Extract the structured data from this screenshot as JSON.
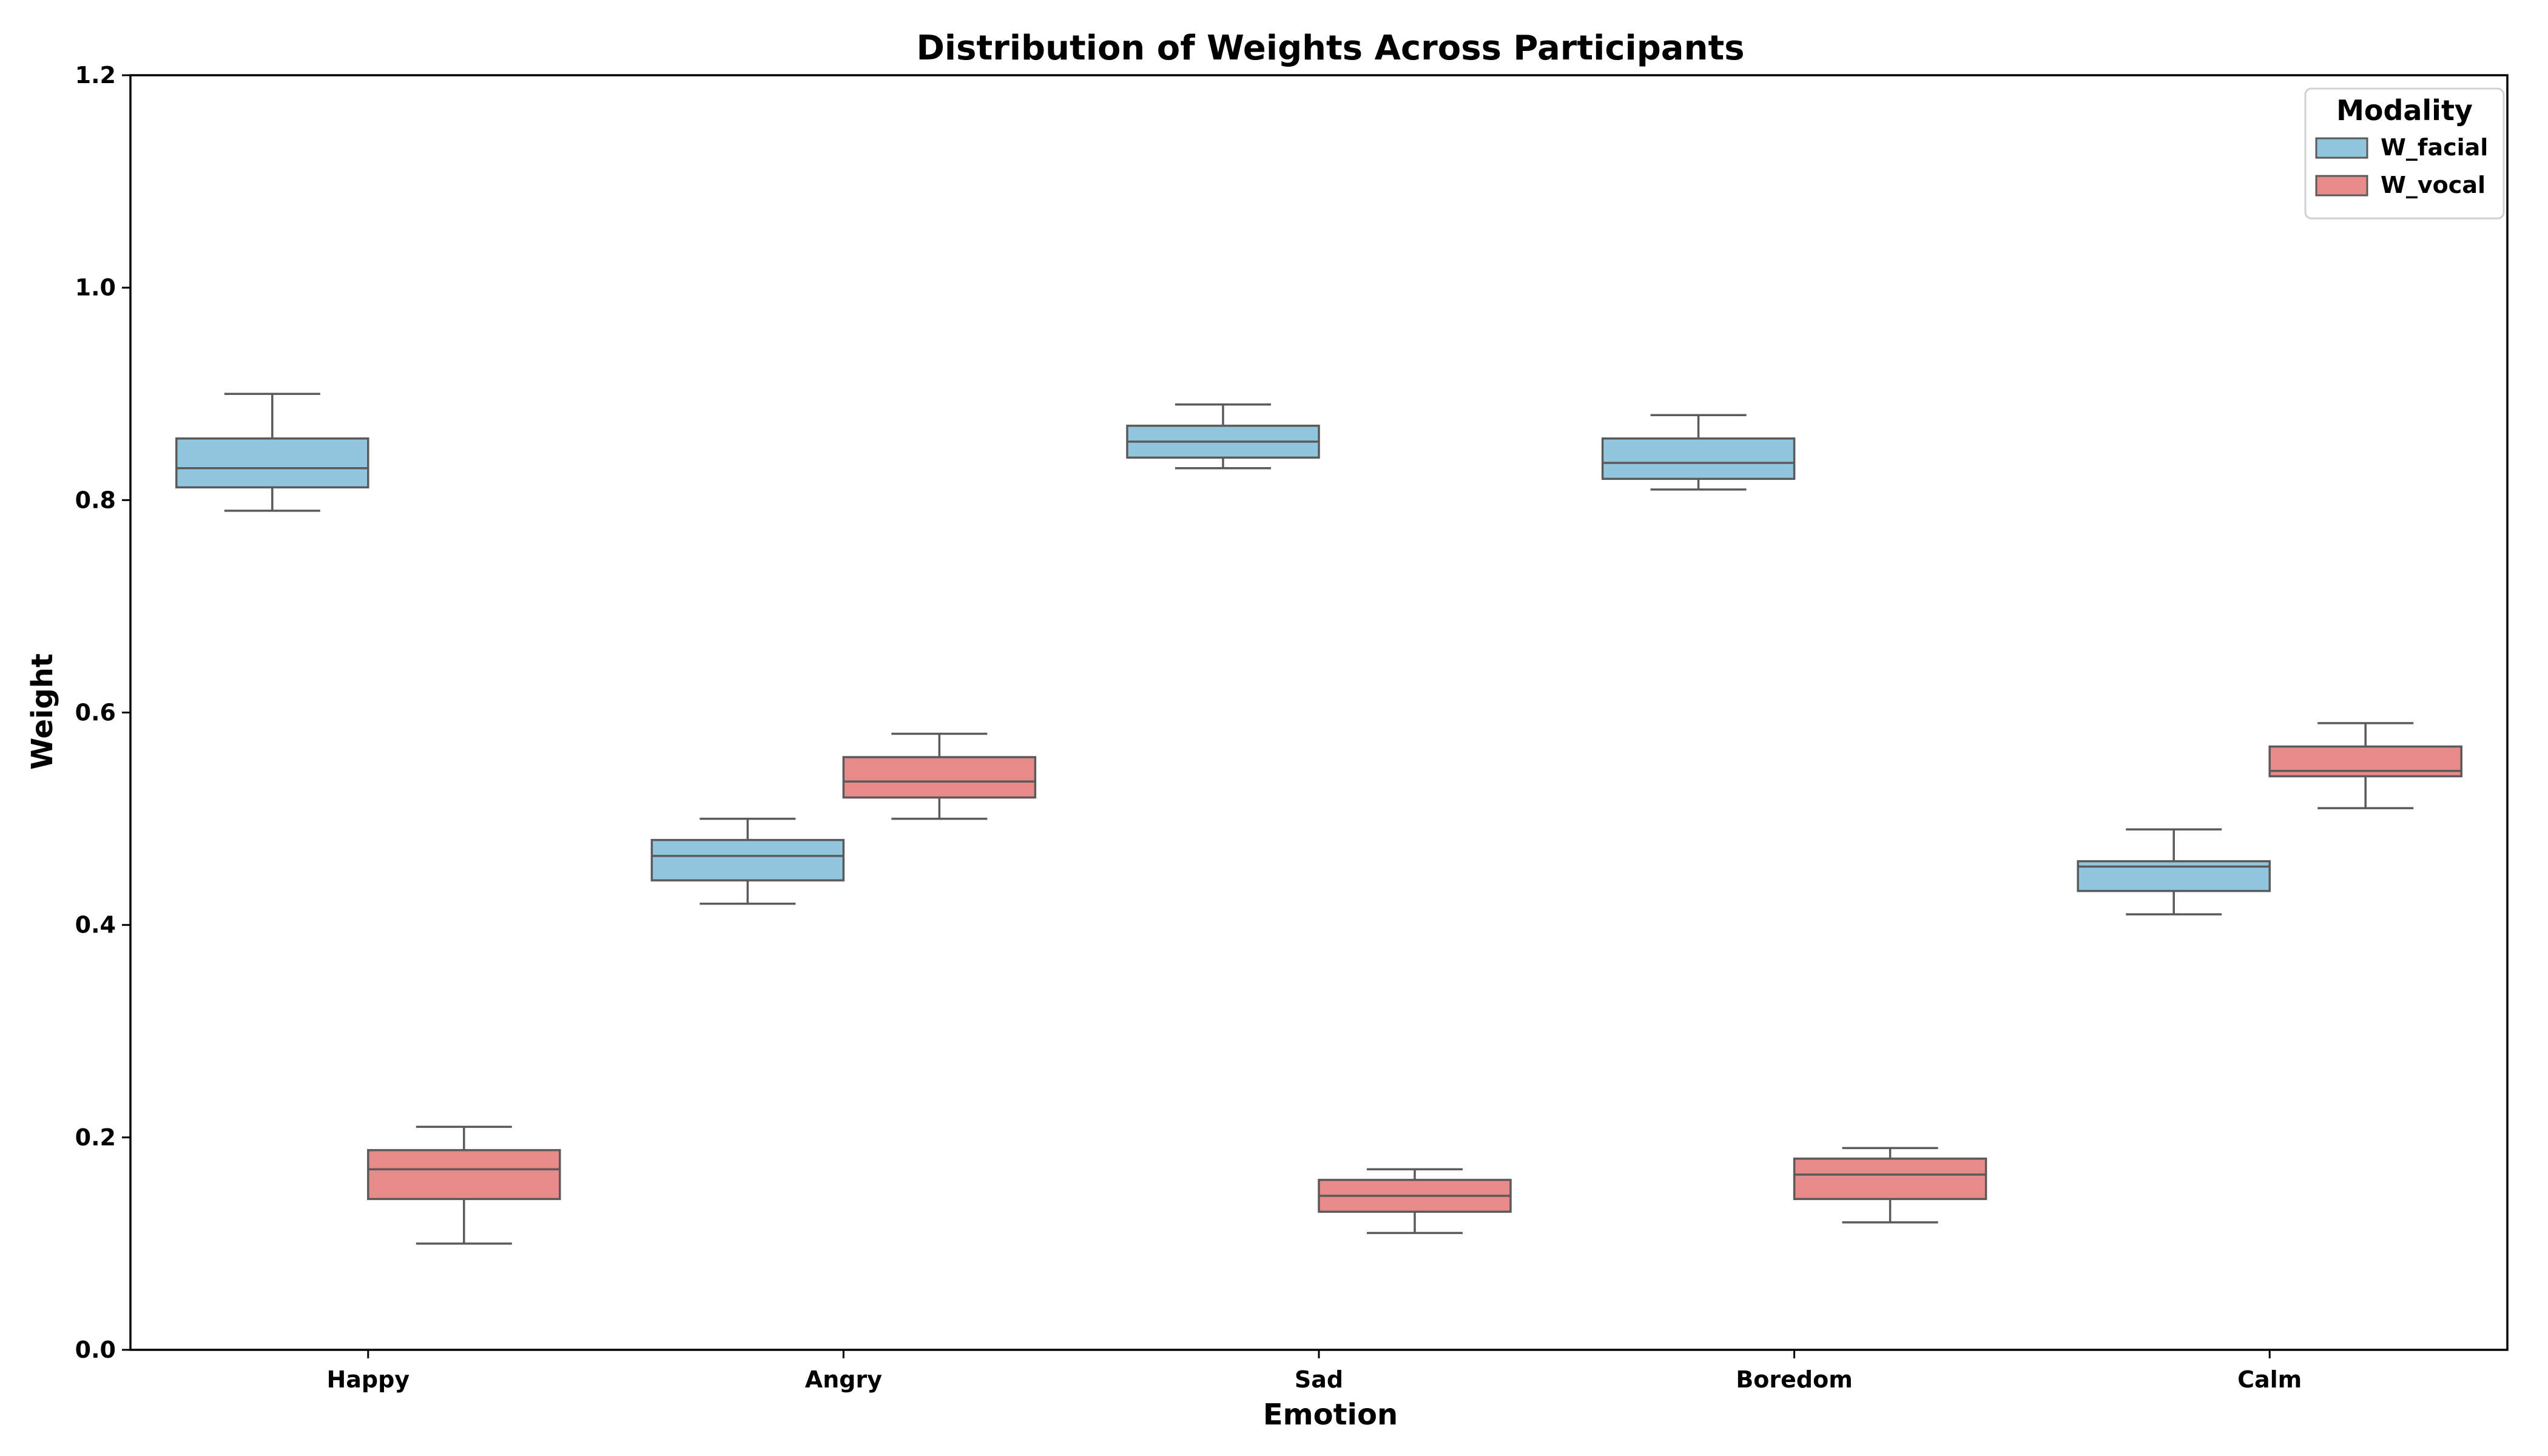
{
  "chart_data": {
    "type": "box",
    "title": "Distribution of Weights Across Participants",
    "xlabel": "Emotion",
    "ylabel": "Weight",
    "ylim": [
      0,
      1.2
    ],
    "yticks": [
      "0.0",
      "0.2",
      "0.4",
      "0.6",
      "0.8",
      "1.0",
      "1.2"
    ],
    "categories": [
      "Happy",
      "Angry",
      "Sad",
      "Boredom",
      "Calm"
    ],
    "legend": {
      "title": "Modality",
      "position": "top-right"
    },
    "grid": false,
    "series": [
      {
        "name": "W_facial",
        "color": "#92c5de",
        "boxes": [
          {
            "whislo": 0.79,
            "q1": 0.812,
            "med": 0.83,
            "q3": 0.858,
            "whishi": 0.9
          },
          {
            "whislo": 0.42,
            "q1": 0.442,
            "med": 0.465,
            "q3": 0.48,
            "whishi": 0.5
          },
          {
            "whislo": 0.83,
            "q1": 0.84,
            "med": 0.855,
            "q3": 0.87,
            "whishi": 0.89
          },
          {
            "whislo": 0.81,
            "q1": 0.82,
            "med": 0.835,
            "q3": 0.858,
            "whishi": 0.88
          },
          {
            "whislo": 0.41,
            "q1": 0.432,
            "med": 0.455,
            "q3": 0.46,
            "whishi": 0.49
          }
        ]
      },
      {
        "name": "W_vocal",
        "color": "#e68a8a",
        "boxes": [
          {
            "whislo": 0.1,
            "q1": 0.142,
            "med": 0.17,
            "q3": 0.188,
            "whishi": 0.21
          },
          {
            "whislo": 0.5,
            "q1": 0.52,
            "med": 0.535,
            "q3": 0.558,
            "whishi": 0.58
          },
          {
            "whislo": 0.11,
            "q1": 0.13,
            "med": 0.145,
            "q3": 0.16,
            "whishi": 0.17
          },
          {
            "whislo": 0.12,
            "q1": 0.142,
            "med": 0.165,
            "q3": 0.18,
            "whishi": 0.19
          },
          {
            "whislo": 0.51,
            "q1": 0.54,
            "med": 0.545,
            "q3": 0.568,
            "whishi": 0.59
          }
        ]
      }
    ]
  }
}
